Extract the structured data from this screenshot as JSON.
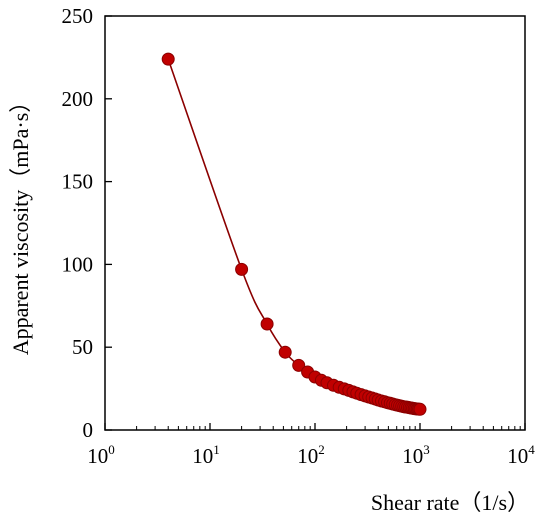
{
  "chart_data": {
    "type": "scatter",
    "title": "",
    "xlabel": "Shear rate（1/s）",
    "ylabel": "Apparent viscosity（mPa·s）",
    "x_scale": "log",
    "xlim": [
      1,
      10000
    ],
    "ylim": [
      0,
      250
    ],
    "x_ticks": [
      {
        "base": "10",
        "exp": "0",
        "value": 1
      },
      {
        "base": "10",
        "exp": "1",
        "value": 10
      },
      {
        "base": "10",
        "exp": "2",
        "value": 100
      },
      {
        "base": "10",
        "exp": "3",
        "value": 1000
      },
      {
        "base": "10",
        "exp": "4",
        "value": 10000
      }
    ],
    "y_ticks": [
      "0",
      "50",
      "100",
      "150",
      "200",
      "250"
    ],
    "grid": false,
    "marker_color": "#c00000",
    "line_color": "#8b0000",
    "series": [
      {
        "x": [
          4,
          20,
          35,
          52,
          70,
          85,
          100,
          115,
          130,
          150,
          170,
          190,
          210,
          230,
          250,
          275,
          300,
          325,
          350,
          375,
          400,
          430,
          460,
          490,
          520,
          550,
          580,
          610,
          640,
          670,
          700,
          730,
          760,
          790,
          820,
          850,
          880,
          910,
          940,
          970,
          1000
        ],
        "y": [
          224,
          97,
          64,
          47,
          39,
          35,
          32,
          30,
          28.5,
          27,
          25.8,
          24.8,
          23.9,
          23,
          22.2,
          21.4,
          20.6,
          19.9,
          19.3,
          18.7,
          18.1,
          17.5,
          17,
          16.5,
          16.1,
          15.7,
          15.3,
          15,
          14.7,
          14.4,
          14.1,
          13.9,
          13.7,
          13.5,
          13.3,
          13.1,
          12.9,
          12.8,
          12.7,
          12.6,
          12.5
        ]
      }
    ]
  }
}
